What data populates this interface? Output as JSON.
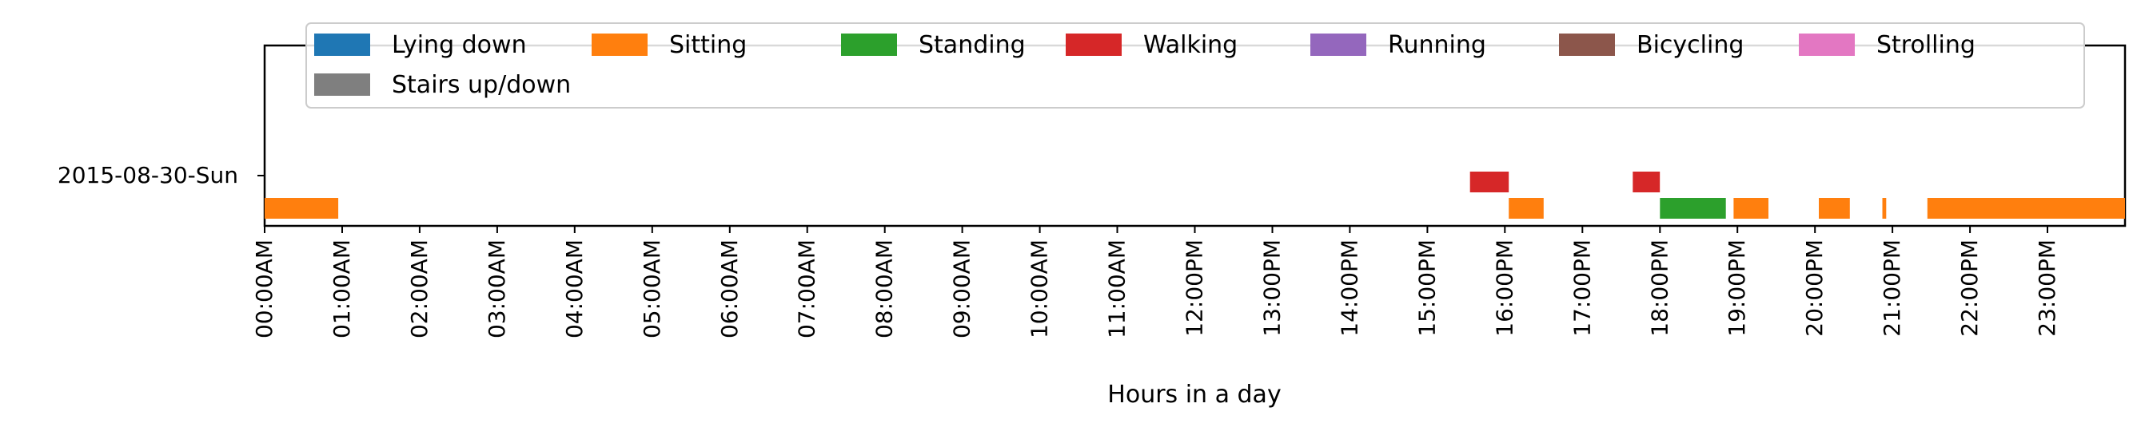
{
  "chart_data": {
    "type": "timeline",
    "xlabel": "Hours in a day",
    "xlim": [
      0,
      24
    ],
    "xticks": [
      {
        "v": 0,
        "label": "00:00AM"
      },
      {
        "v": 1,
        "label": "01:00AM"
      },
      {
        "v": 2,
        "label": "02:00AM"
      },
      {
        "v": 3,
        "label": "03:00AM"
      },
      {
        "v": 4,
        "label": "04:00AM"
      },
      {
        "v": 5,
        "label": "05:00AM"
      },
      {
        "v": 6,
        "label": "06:00AM"
      },
      {
        "v": 7,
        "label": "07:00AM"
      },
      {
        "v": 8,
        "label": "08:00AM"
      },
      {
        "v": 9,
        "label": "09:00AM"
      },
      {
        "v": 10,
        "label": "10:00AM"
      },
      {
        "v": 11,
        "label": "11:00AM"
      },
      {
        "v": 12,
        "label": "12:00PM"
      },
      {
        "v": 13,
        "label": "13:00PM"
      },
      {
        "v": 14,
        "label": "14:00PM"
      },
      {
        "v": 15,
        "label": "15:00PM"
      },
      {
        "v": 16,
        "label": "16:00PM"
      },
      {
        "v": 17,
        "label": "17:00PM"
      },
      {
        "v": 18,
        "label": "18:00PM"
      },
      {
        "v": 19,
        "label": "19:00PM"
      },
      {
        "v": 20,
        "label": "20:00PM"
      },
      {
        "v": 21,
        "label": "21:00PM"
      },
      {
        "v": 22,
        "label": "22:00PM"
      },
      {
        "v": 23,
        "label": "23:00PM"
      }
    ],
    "day_label": "2015-08-30-Sun",
    "legend_placement": "upper-center",
    "categories": [
      {
        "name": "Lying down",
        "color": "#1f77b4",
        "segments": []
      },
      {
        "name": "Sitting",
        "color": "#ff7f0e",
        "segments": [
          [
            0.0,
            0.95
          ],
          [
            16.05,
            16.5
          ],
          [
            18.95,
            19.4
          ],
          [
            20.05,
            20.45
          ],
          [
            20.87,
            20.92
          ],
          [
            21.45,
            24.0
          ]
        ]
      },
      {
        "name": "Standing",
        "color": "#2ca02c",
        "segments": [
          [
            18.0,
            18.85
          ]
        ]
      },
      {
        "name": "Walking",
        "color": "#d62728",
        "segments": [
          [
            15.55,
            16.05
          ],
          [
            17.65,
            18.0
          ]
        ]
      },
      {
        "name": "Running",
        "color": "#9467bd",
        "segments": []
      },
      {
        "name": "Bicycling",
        "color": "#8c564b",
        "segments": []
      },
      {
        "name": "Strolling",
        "color": "#e377c2",
        "segments": []
      },
      {
        "name": "Stairs up/down",
        "color": "#7f7f7f",
        "segments": []
      }
    ]
  }
}
